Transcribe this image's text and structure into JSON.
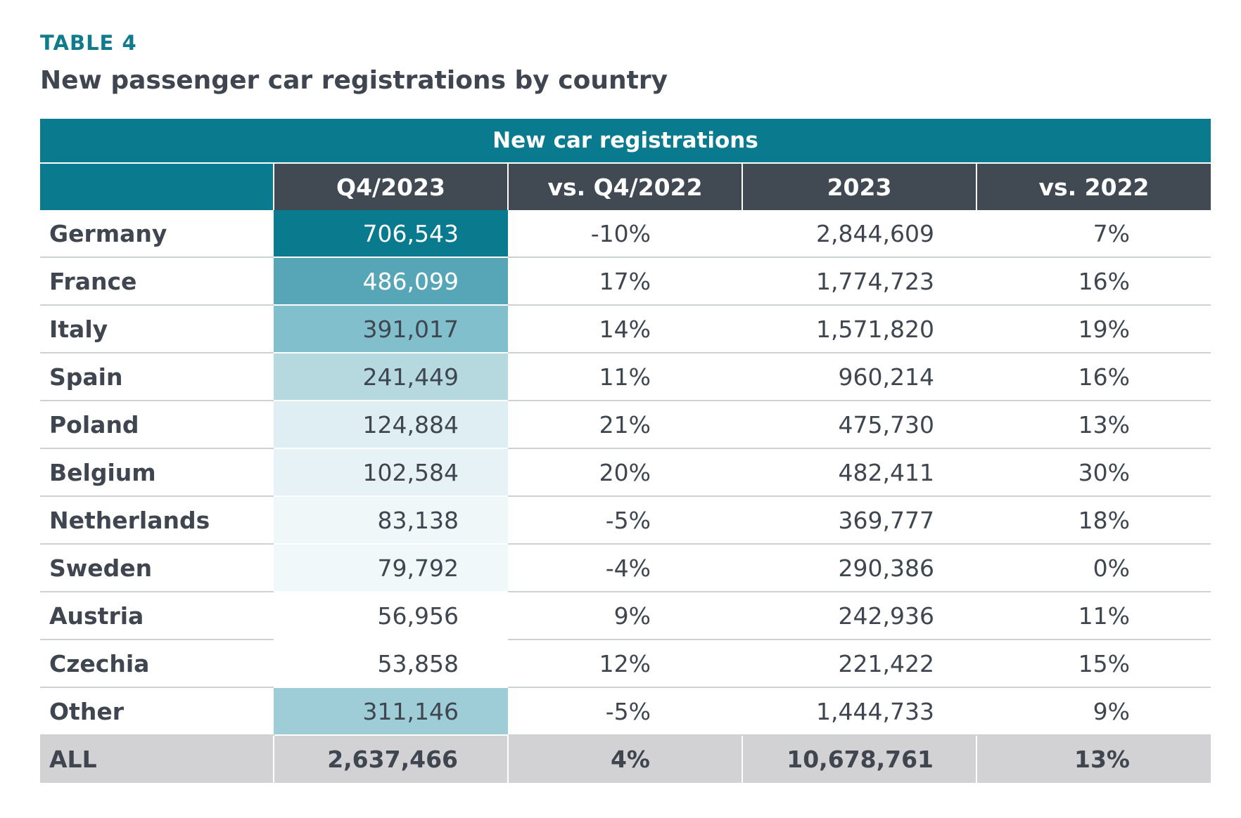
{
  "header": {
    "label": "TABLE 4",
    "title": "New passenger car registrations by country"
  },
  "table": {
    "group_header": "New car registrations",
    "columns": [
      "",
      "Q4/2023",
      "vs. Q4/2022",
      "2023",
      "vs. 2022"
    ],
    "rows": [
      {
        "country": "Germany",
        "q4_2023": "706,543",
        "vs_q4_2022": "-10%",
        "y2023": "2,844,609",
        "vs_2022": "7%",
        "shade": "#0a7a8f",
        "text": "#ffffff"
      },
      {
        "country": "France",
        "q4_2023": "486,099",
        "vs_q4_2022": "17%",
        "y2023": "1,774,723",
        "vs_2022": "16%",
        "shade": "#57a6b8",
        "text": "#ffffff"
      },
      {
        "country": "Italy",
        "q4_2023": "391,017",
        "vs_q4_2022": "14%",
        "y2023": "1,571,820",
        "vs_2022": "19%",
        "shade": "#80bfcb",
        "text": "#3f4650"
      },
      {
        "country": "Spain",
        "q4_2023": "241,449",
        "vs_q4_2022": "11%",
        "y2023": "960,214",
        "vs_2022": "16%",
        "shade": "#b6d9e0",
        "text": "#3f4650"
      },
      {
        "country": "Poland",
        "q4_2023": "124,884",
        "vs_q4_2022": "21%",
        "y2023": "475,730",
        "vs_2022": "13%",
        "shade": "#deeef2",
        "text": "#3f4650"
      },
      {
        "country": "Belgium",
        "q4_2023": "102,584",
        "vs_q4_2022": "20%",
        "y2023": "482,411",
        "vs_2022": "30%",
        "shade": "#e6f2f5",
        "text": "#3f4650"
      },
      {
        "country": "Netherlands",
        "q4_2023": "83,138",
        "vs_q4_2022": "-5%",
        "y2023": "369,777",
        "vs_2022": "18%",
        "shade": "#eff7f9",
        "text": "#3f4650"
      },
      {
        "country": "Sweden",
        "q4_2023": "79,792",
        "vs_q4_2022": "-4%",
        "y2023": "290,386",
        "vs_2022": "0%",
        "shade": "#f1f8fa",
        "text": "#3f4650"
      },
      {
        "country": "Austria",
        "q4_2023": "56,956",
        "vs_q4_2022": "9%",
        "y2023": "242,936",
        "vs_2022": "11%",
        "shade": "#ffffff",
        "text": "#3f4650"
      },
      {
        "country": "Czechia",
        "q4_2023": "53,858",
        "vs_q4_2022": "12%",
        "y2023": "221,422",
        "vs_2022": "15%",
        "shade": "#ffffff",
        "text": "#3f4650"
      },
      {
        "country": "Other",
        "q4_2023": "311,146",
        "vs_q4_2022": "-5%",
        "y2023": "1,444,733",
        "vs_2022": "9%",
        "shade": "#9ecdd7",
        "text": "#3f4650"
      }
    ],
    "total": {
      "country": "ALL",
      "q4_2023": "2,637,466",
      "vs_q4_2022": "4%",
      "y2023": "10,678,761",
      "vs_2022": "13%"
    }
  }
}
